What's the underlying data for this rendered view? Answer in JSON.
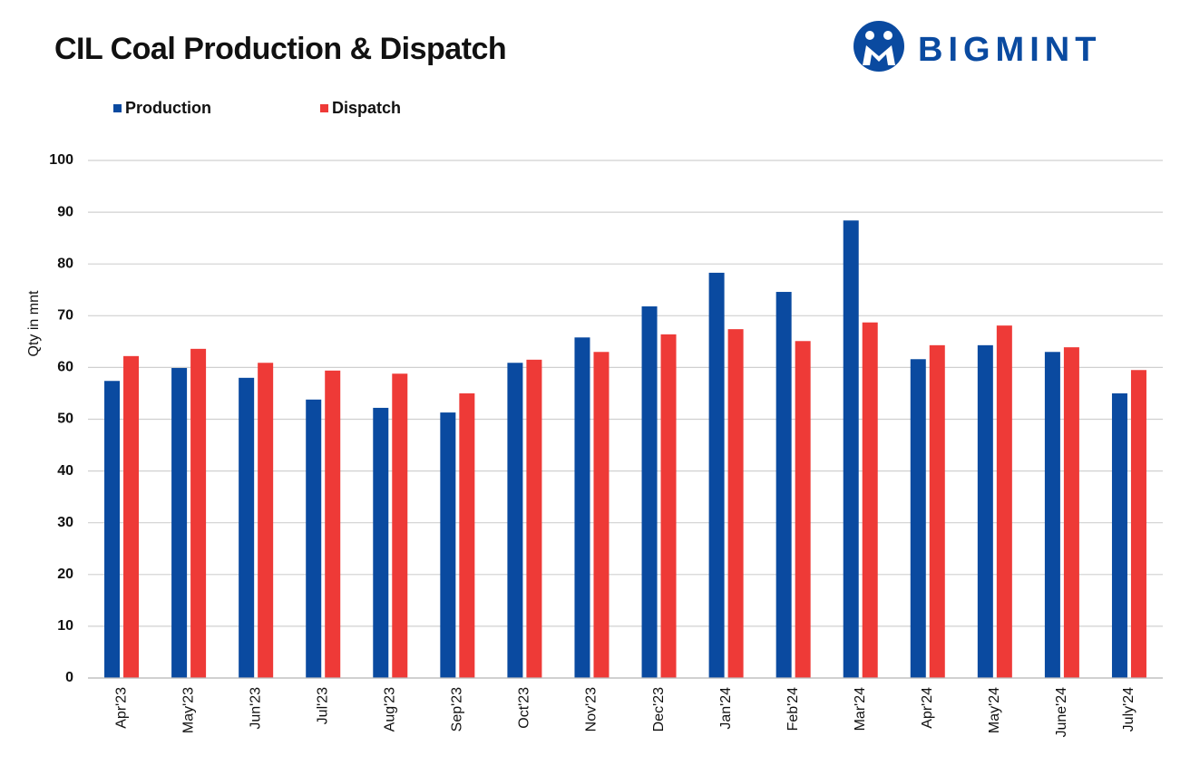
{
  "brand": "BIGMINT",
  "chart_data": {
    "type": "bar",
    "title": "CIL Coal Production & Dispatch",
    "y_label": "Qty in mnt",
    "categories": [
      "Apr'23",
      "May'23",
      "Jun'23",
      "Jul'23",
      "Aug'23",
      "Sep'23",
      "Oct'23",
      "Nov'23",
      "Dec'23",
      "Jan'24",
      "Feb'24",
      "Mar'24",
      "Apr'24",
      "May'24",
      "June'24",
      "July'24"
    ],
    "series": [
      {
        "name": "Production",
        "color": "#0a4aa0",
        "values": [
          57.4,
          59.9,
          58.0,
          53.8,
          52.2,
          51.3,
          60.9,
          65.8,
          71.8,
          78.3,
          74.6,
          88.4,
          61.6,
          64.3,
          63.0,
          55.0
        ]
      },
      {
        "name": "Dispatch",
        "color": "#ee3a37",
        "values": [
          62.2,
          63.6,
          60.9,
          59.4,
          58.8,
          55.0,
          61.5,
          63.0,
          66.4,
          67.4,
          65.1,
          68.7,
          64.3,
          68.1,
          63.9,
          59.5
        ]
      }
    ],
    "ylim": [
      0,
      100
    ],
    "yticks": [
      0,
      10,
      20,
      30,
      40,
      50,
      60,
      70,
      80,
      90,
      100
    ],
    "grid": true,
    "legend": "top-left"
  }
}
